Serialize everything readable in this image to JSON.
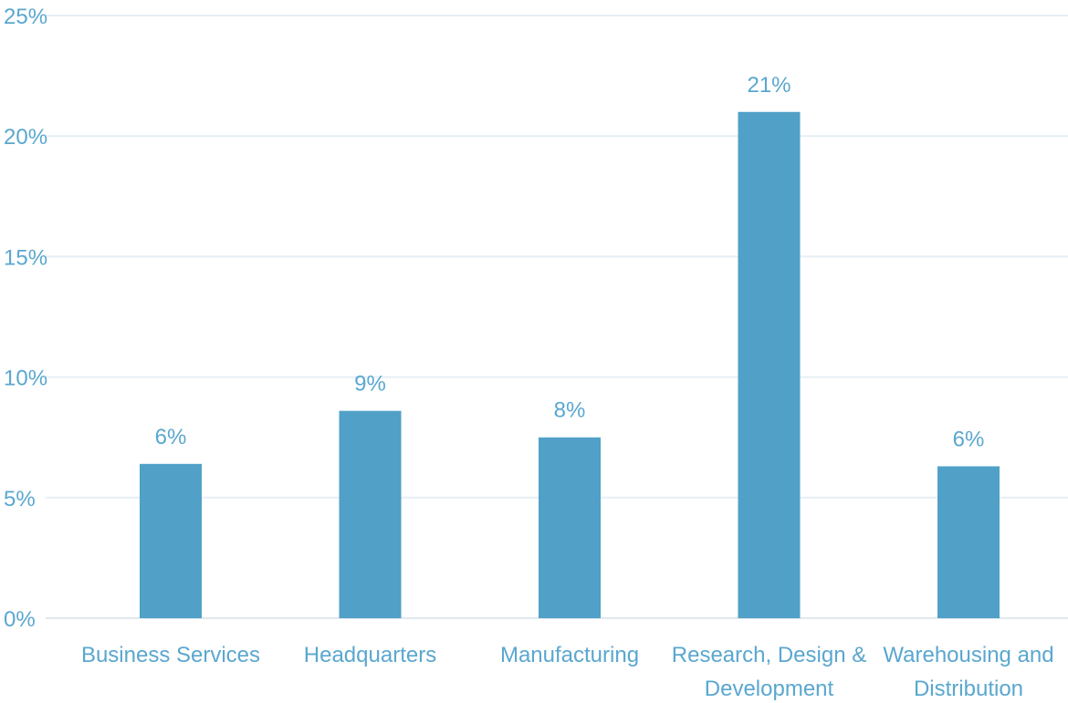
{
  "chart_data": {
    "type": "bar",
    "categories": [
      [
        "Business Services"
      ],
      [
        "Headquarters"
      ],
      [
        "Manufacturing"
      ],
      [
        "Research, Design &",
        "Development"
      ],
      [
        "Warehousing and",
        "Distribution"
      ]
    ],
    "values": [
      6.4,
      8.6,
      7.5,
      21.0,
      6.3
    ],
    "data_labels": [
      "6%",
      "9%",
      "8%",
      "21%",
      "6%"
    ],
    "y_ticks": [
      0,
      5,
      10,
      15,
      20,
      25
    ],
    "y_tick_labels": [
      "0%",
      "5%",
      "10%",
      "15%",
      "20%",
      "25%"
    ],
    "ylim": [
      0,
      25
    ],
    "grid": true,
    "legend": "none",
    "title": "",
    "xlabel": "",
    "ylabel": ""
  },
  "colors": {
    "bar": "#50a0c7",
    "text": "#5aa7cf",
    "grid": "#e6eff5",
    "axis": "#dfe8ee"
  }
}
